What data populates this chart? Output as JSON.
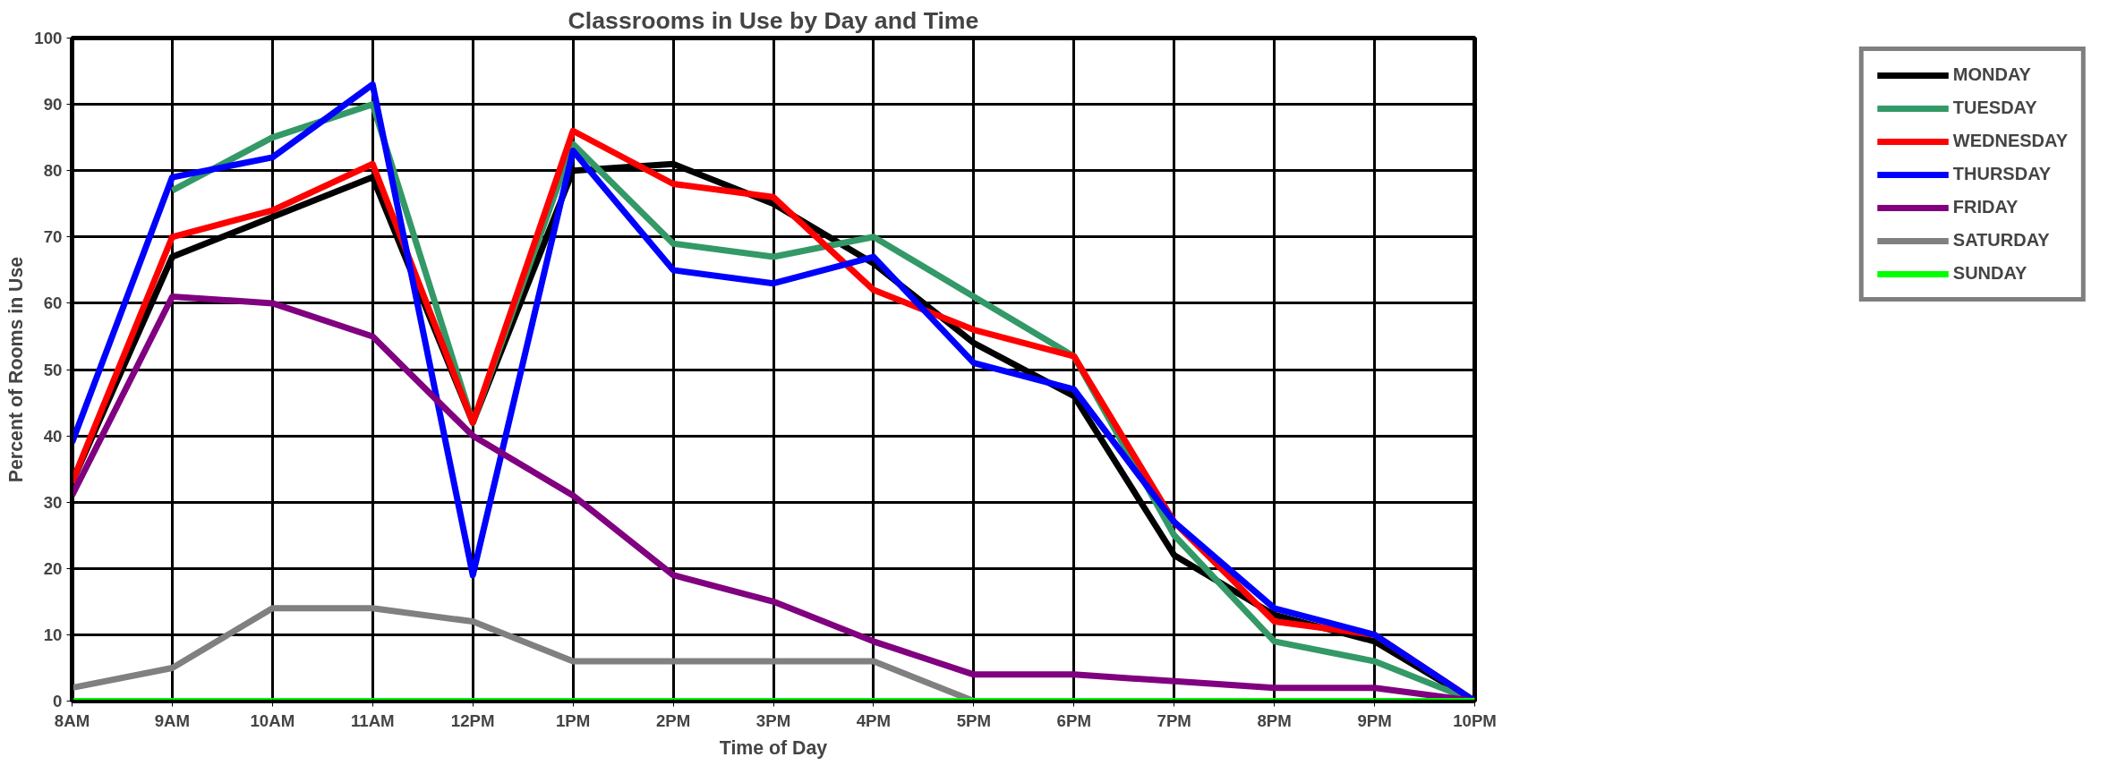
{
  "chart_data": {
    "type": "line",
    "title": "Classrooms in Use by Day and Time",
    "xlabel": "Time of Day",
    "ylabel": "Percent of Rooms in Use",
    "categories": [
      "8AM",
      "9AM",
      "10AM",
      "11AM",
      "12PM",
      "1PM",
      "2PM",
      "3PM",
      "4PM",
      "5PM",
      "6PM",
      "7PM",
      "8PM",
      "9PM",
      "10PM"
    ],
    "series": [
      {
        "name": "MONDAY",
        "color": "#000000",
        "values": [
          33,
          67,
          73,
          79,
          42,
          80,
          81,
          75,
          66,
          54,
          46,
          22,
          13,
          9,
          0
        ]
      },
      {
        "name": "TUESDAY",
        "color": "#339966",
        "values": [
          null,
          77,
          85,
          90,
          42,
          84,
          69,
          67,
          70,
          61,
          52,
          25,
          9,
          6,
          0
        ]
      },
      {
        "name": "WEDNESDAY",
        "color": "#ff0000",
        "values": [
          33,
          70,
          74,
          81,
          42,
          86,
          78,
          76,
          62,
          56,
          52,
          27,
          12,
          10,
          0
        ]
      },
      {
        "name": "THURSDAY",
        "color": "#0000ff",
        "values": [
          39,
          79,
          82,
          93,
          19,
          83,
          65,
          63,
          67,
          51,
          47,
          27,
          14,
          10,
          0
        ]
      },
      {
        "name": "FRIDAY",
        "color": "#800080",
        "values": [
          31,
          61,
          60,
          55,
          40,
          31,
          19,
          15,
          9,
          4,
          4,
          3,
          2,
          2,
          0
        ]
      },
      {
        "name": "SATURDAY",
        "color": "#808080",
        "values": [
          2,
          5,
          14,
          14,
          12,
          6,
          6,
          6,
          6,
          0,
          0,
          0,
          0,
          0,
          0
        ]
      },
      {
        "name": "SUNDAY",
        "color": "#00ff00",
        "values": [
          0,
          0,
          0,
          0,
          0,
          0,
          0,
          0,
          0,
          0,
          0,
          0,
          0,
          0,
          0
        ]
      }
    ],
    "ylim": [
      0,
      100
    ],
    "yticks": [
      0,
      10,
      20,
      30,
      40,
      50,
      60,
      70,
      80,
      90,
      100
    ],
    "grid": true,
    "legend": "right",
    "marker": "none",
    "line_style": "solid"
  }
}
